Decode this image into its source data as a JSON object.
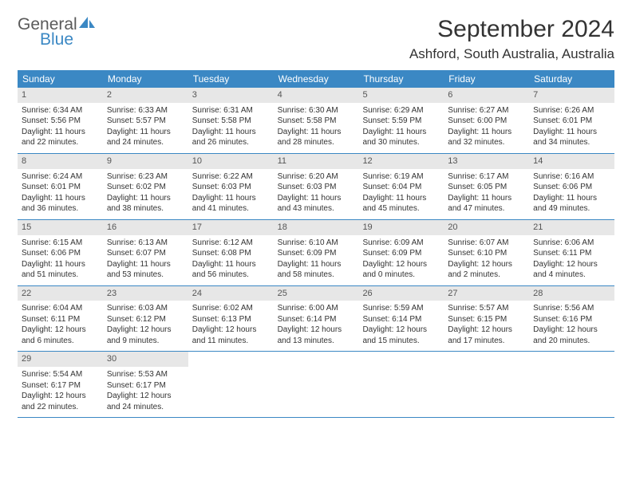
{
  "brand": {
    "general": "General",
    "blue": "Blue"
  },
  "title": "September 2024",
  "location": "Ashford, South Australia, Australia",
  "colors": {
    "header_bg": "#3b88c4",
    "daynum_bg": "#e7e7e7",
    "text": "#333333",
    "logo_blue": "#3b88c4",
    "logo_gray": "#5a5a5a"
  },
  "day_headers": [
    "Sunday",
    "Monday",
    "Tuesday",
    "Wednesday",
    "Thursday",
    "Friday",
    "Saturday"
  ],
  "weeks": [
    [
      {
        "n": "1",
        "sr": "Sunrise: 6:34 AM",
        "ss": "Sunset: 5:56 PM",
        "d1": "Daylight: 11 hours",
        "d2": "and 22 minutes."
      },
      {
        "n": "2",
        "sr": "Sunrise: 6:33 AM",
        "ss": "Sunset: 5:57 PM",
        "d1": "Daylight: 11 hours",
        "d2": "and 24 minutes."
      },
      {
        "n": "3",
        "sr": "Sunrise: 6:31 AM",
        "ss": "Sunset: 5:58 PM",
        "d1": "Daylight: 11 hours",
        "d2": "and 26 minutes."
      },
      {
        "n": "4",
        "sr": "Sunrise: 6:30 AM",
        "ss": "Sunset: 5:58 PM",
        "d1": "Daylight: 11 hours",
        "d2": "and 28 minutes."
      },
      {
        "n": "5",
        "sr": "Sunrise: 6:29 AM",
        "ss": "Sunset: 5:59 PM",
        "d1": "Daylight: 11 hours",
        "d2": "and 30 minutes."
      },
      {
        "n": "6",
        "sr": "Sunrise: 6:27 AM",
        "ss": "Sunset: 6:00 PM",
        "d1": "Daylight: 11 hours",
        "d2": "and 32 minutes."
      },
      {
        "n": "7",
        "sr": "Sunrise: 6:26 AM",
        "ss": "Sunset: 6:01 PM",
        "d1": "Daylight: 11 hours",
        "d2": "and 34 minutes."
      }
    ],
    [
      {
        "n": "8",
        "sr": "Sunrise: 6:24 AM",
        "ss": "Sunset: 6:01 PM",
        "d1": "Daylight: 11 hours",
        "d2": "and 36 minutes."
      },
      {
        "n": "9",
        "sr": "Sunrise: 6:23 AM",
        "ss": "Sunset: 6:02 PM",
        "d1": "Daylight: 11 hours",
        "d2": "and 38 minutes."
      },
      {
        "n": "10",
        "sr": "Sunrise: 6:22 AM",
        "ss": "Sunset: 6:03 PM",
        "d1": "Daylight: 11 hours",
        "d2": "and 41 minutes."
      },
      {
        "n": "11",
        "sr": "Sunrise: 6:20 AM",
        "ss": "Sunset: 6:03 PM",
        "d1": "Daylight: 11 hours",
        "d2": "and 43 minutes."
      },
      {
        "n": "12",
        "sr": "Sunrise: 6:19 AM",
        "ss": "Sunset: 6:04 PM",
        "d1": "Daylight: 11 hours",
        "d2": "and 45 minutes."
      },
      {
        "n": "13",
        "sr": "Sunrise: 6:17 AM",
        "ss": "Sunset: 6:05 PM",
        "d1": "Daylight: 11 hours",
        "d2": "and 47 minutes."
      },
      {
        "n": "14",
        "sr": "Sunrise: 6:16 AM",
        "ss": "Sunset: 6:06 PM",
        "d1": "Daylight: 11 hours",
        "d2": "and 49 minutes."
      }
    ],
    [
      {
        "n": "15",
        "sr": "Sunrise: 6:15 AM",
        "ss": "Sunset: 6:06 PM",
        "d1": "Daylight: 11 hours",
        "d2": "and 51 minutes."
      },
      {
        "n": "16",
        "sr": "Sunrise: 6:13 AM",
        "ss": "Sunset: 6:07 PM",
        "d1": "Daylight: 11 hours",
        "d2": "and 53 minutes."
      },
      {
        "n": "17",
        "sr": "Sunrise: 6:12 AM",
        "ss": "Sunset: 6:08 PM",
        "d1": "Daylight: 11 hours",
        "d2": "and 56 minutes."
      },
      {
        "n": "18",
        "sr": "Sunrise: 6:10 AM",
        "ss": "Sunset: 6:09 PM",
        "d1": "Daylight: 11 hours",
        "d2": "and 58 minutes."
      },
      {
        "n": "19",
        "sr": "Sunrise: 6:09 AM",
        "ss": "Sunset: 6:09 PM",
        "d1": "Daylight: 12 hours",
        "d2": "and 0 minutes."
      },
      {
        "n": "20",
        "sr": "Sunrise: 6:07 AM",
        "ss": "Sunset: 6:10 PM",
        "d1": "Daylight: 12 hours",
        "d2": "and 2 minutes."
      },
      {
        "n": "21",
        "sr": "Sunrise: 6:06 AM",
        "ss": "Sunset: 6:11 PM",
        "d1": "Daylight: 12 hours",
        "d2": "and 4 minutes."
      }
    ],
    [
      {
        "n": "22",
        "sr": "Sunrise: 6:04 AM",
        "ss": "Sunset: 6:11 PM",
        "d1": "Daylight: 12 hours",
        "d2": "and 6 minutes."
      },
      {
        "n": "23",
        "sr": "Sunrise: 6:03 AM",
        "ss": "Sunset: 6:12 PM",
        "d1": "Daylight: 12 hours",
        "d2": "and 9 minutes."
      },
      {
        "n": "24",
        "sr": "Sunrise: 6:02 AM",
        "ss": "Sunset: 6:13 PM",
        "d1": "Daylight: 12 hours",
        "d2": "and 11 minutes."
      },
      {
        "n": "25",
        "sr": "Sunrise: 6:00 AM",
        "ss": "Sunset: 6:14 PM",
        "d1": "Daylight: 12 hours",
        "d2": "and 13 minutes."
      },
      {
        "n": "26",
        "sr": "Sunrise: 5:59 AM",
        "ss": "Sunset: 6:14 PM",
        "d1": "Daylight: 12 hours",
        "d2": "and 15 minutes."
      },
      {
        "n": "27",
        "sr": "Sunrise: 5:57 AM",
        "ss": "Sunset: 6:15 PM",
        "d1": "Daylight: 12 hours",
        "d2": "and 17 minutes."
      },
      {
        "n": "28",
        "sr": "Sunrise: 5:56 AM",
        "ss": "Sunset: 6:16 PM",
        "d1": "Daylight: 12 hours",
        "d2": "and 20 minutes."
      }
    ],
    [
      {
        "n": "29",
        "sr": "Sunrise: 5:54 AM",
        "ss": "Sunset: 6:17 PM",
        "d1": "Daylight: 12 hours",
        "d2": "and 22 minutes."
      },
      {
        "n": "30",
        "sr": "Sunrise: 5:53 AM",
        "ss": "Sunset: 6:17 PM",
        "d1": "Daylight: 12 hours",
        "d2": "and 24 minutes."
      },
      null,
      null,
      null,
      null,
      null
    ]
  ]
}
